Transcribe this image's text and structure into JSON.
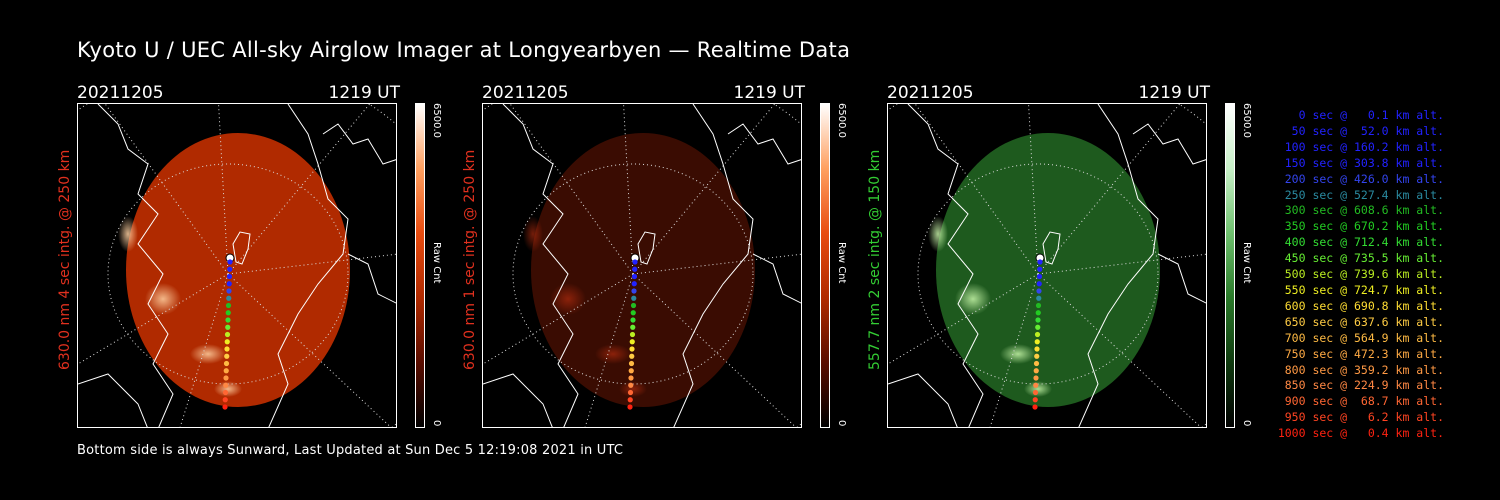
{
  "title": "Kyoto U / UEC All-sky Airglow Imager at Longyearbyen — Realtime Data",
  "footer": "Bottom side is always Sunward, Last Updated at Sun Dec  5 12:19:08 2021 in UTC",
  "panels": [
    {
      "date": "20211205",
      "time": "1219 UT",
      "ylabel": "630.0 nm 4 sec intg. @ 250 km",
      "ylabel_color": "#e0301e",
      "cbar_max": "6500.0",
      "cbar_min": "0",
      "cbar_unit": "Raw Cnt",
      "image_theme": "red-bright",
      "colormap": [
        "#000000",
        "#5a0d00",
        "#b02a00",
        "#e84c10",
        "#ffa060",
        "#ffffff"
      ]
    },
    {
      "date": "20211205",
      "time": "1219 UT",
      "ylabel": "630.0 nm 1 sec intg. @ 250 km",
      "ylabel_color": "#e0301e",
      "cbar_max": "6500.0",
      "cbar_min": "0",
      "cbar_unit": "Raw Cnt",
      "image_theme": "red-dim",
      "colormap": [
        "#000000",
        "#5a0d00",
        "#b02a00",
        "#e84c10",
        "#ffa060",
        "#ffffff"
      ]
    },
    {
      "date": "20211205",
      "time": "1219 UT",
      "ylabel": "557.7 nm 2 sec intg. @ 150 km",
      "ylabel_color": "#33cc33",
      "cbar_max": "6500.0",
      "cbar_min": "0",
      "cbar_unit": "Raw Cnt",
      "image_theme": "green",
      "colormap": [
        "#000000",
        "#0f3a0f",
        "#2a7a2a",
        "#6ec06e",
        "#c8f0c8",
        "#ffffff"
      ]
    }
  ],
  "legend": [
    {
      "text": "0 sec @   0.1 km alt.",
      "color": "#2222ff"
    },
    {
      "text": "50 sec @  52.0 km alt.",
      "color": "#2222ff"
    },
    {
      "text": "100 sec @ 160.2 km alt.",
      "color": "#2222ff"
    },
    {
      "text": "150 sec @ 303.8 km alt.",
      "color": "#2222ff"
    },
    {
      "text": "200 sec @ 426.0 km alt.",
      "color": "#3344ee"
    },
    {
      "text": "250 sec @ 527.4 km alt.",
      "color": "#2a8aa0"
    },
    {
      "text": "300 sec @ 608.6 km alt.",
      "color": "#22bb22"
    },
    {
      "text": "350 sec @ 670.2 km alt.",
      "color": "#22cc22"
    },
    {
      "text": "400 sec @ 712.4 km alt.",
      "color": "#33dd33"
    },
    {
      "text": "450 sec @ 735.5 km alt.",
      "color": "#66ee33"
    },
    {
      "text": "500 sec @ 739.6 km alt.",
      "color": "#bbee22"
    },
    {
      "text": "550 sec @ 724.7 km alt.",
      "color": "#eeee22"
    },
    {
      "text": "600 sec @ 690.8 km alt.",
      "color": "#ffdd33"
    },
    {
      "text": "650 sec @ 637.6 km alt.",
      "color": "#ffcc44"
    },
    {
      "text": "700 sec @ 564.9 km alt.",
      "color": "#ffbb44"
    },
    {
      "text": "750 sec @ 472.3 km alt.",
      "color": "#ffaa44"
    },
    {
      "text": "800 sec @ 359.2 km alt.",
      "color": "#ff9944"
    },
    {
      "text": "850 sec @ 224.9 km alt.",
      "color": "#ff8844"
    },
    {
      "text": "900 sec @  68.7 km alt.",
      "color": "#ff6633"
    },
    {
      "text": "950 sec @   6.2 km alt.",
      "color": "#ff4422"
    },
    {
      "text": "1000 sec @   0.4 km alt.",
      "color": "#ff2211"
    }
  ]
}
